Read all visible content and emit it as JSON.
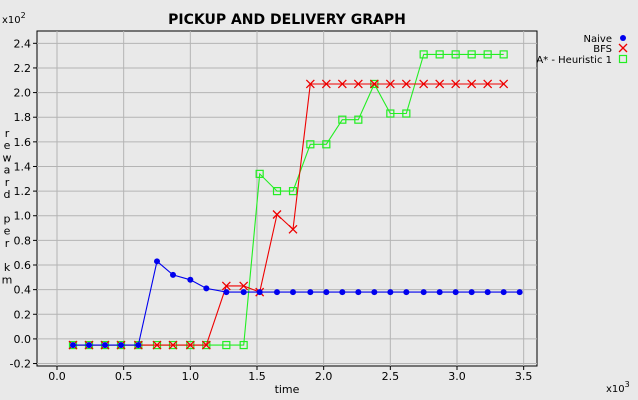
{
  "chart_data": {
    "type": "line",
    "title": "PICKUP AND DELIVERY GRAPH",
    "xlabel": "time",
    "ylabel_chars": [
      "r",
      "e",
      "w",
      "a",
      "r",
      "d",
      "",
      "p",
      "e",
      "r",
      "",
      "k",
      "m"
    ],
    "x_multiplier": {
      "base": "x10",
      "exp": "3"
    },
    "y_multiplier": {
      "base": "x10",
      "exp": "2"
    },
    "xlim": [
      -0.15,
      3.6
    ],
    "ylim": [
      -0.22,
      2.5
    ],
    "xticks": [
      0.0,
      0.5,
      1.0,
      1.5,
      2.0,
      2.5,
      3.0,
      3.5
    ],
    "xtick_labels": [
      "0.0",
      "0.5",
      "1.0",
      "1.5",
      "2.0",
      "2.5",
      "3.0",
      "3.5"
    ],
    "yticks": [
      -0.2,
      0.0,
      0.2,
      0.4,
      0.6,
      0.8,
      1.0,
      1.2,
      1.4,
      1.6,
      1.8,
      2.0,
      2.2,
      2.4
    ],
    "ytick_labels": [
      "-0.2",
      "0.0",
      "0.2",
      "0.4",
      "0.6",
      "0.8",
      "1.0",
      "1.2",
      "1.4",
      "1.6",
      "1.8",
      "2.0",
      "2.2",
      "2.4"
    ],
    "grid": true,
    "legend_position": "top-right",
    "series": [
      {
        "name": "Naive",
        "color": "#0000ee",
        "marker": "circle",
        "x": [
          0.12,
          0.24,
          0.36,
          0.48,
          0.61,
          0.75,
          0.87,
          1.0,
          1.12,
          1.27,
          1.4,
          1.52,
          1.65,
          1.77,
          1.9,
          2.02,
          2.14,
          2.26,
          2.38,
          2.5,
          2.62,
          2.75,
          2.87,
          2.99,
          3.11,
          3.23,
          3.35,
          3.47
        ],
        "y": [
          -0.05,
          -0.05,
          -0.05,
          -0.05,
          -0.05,
          0.63,
          0.52,
          0.48,
          0.41,
          0.38,
          0.38,
          0.38,
          0.38,
          0.38,
          0.38,
          0.38,
          0.38,
          0.38,
          0.38,
          0.38,
          0.38,
          0.38,
          0.38,
          0.38,
          0.38,
          0.38,
          0.38,
          0.38
        ]
      },
      {
        "name": "BFS",
        "color": "#ee0000",
        "marker": "x",
        "x": [
          0.12,
          0.24,
          0.36,
          0.48,
          0.61,
          0.75,
          0.87,
          1.0,
          1.12,
          1.27,
          1.4,
          1.52,
          1.65,
          1.77,
          1.9,
          2.02,
          2.14,
          2.26,
          2.38,
          2.5,
          2.62,
          2.75,
          2.87,
          2.99,
          3.11,
          3.23,
          3.35
        ],
        "y": [
          -0.05,
          -0.05,
          -0.05,
          -0.05,
          -0.05,
          -0.05,
          -0.05,
          -0.05,
          -0.05,
          0.43,
          0.43,
          0.38,
          1.01,
          0.89,
          2.07,
          2.07,
          2.07,
          2.07,
          2.07,
          2.07,
          2.07,
          2.07,
          2.07,
          2.07,
          2.07,
          2.07,
          2.07
        ]
      },
      {
        "name": "A* - Heuristic 1",
        "color": "#22ee22",
        "marker": "square",
        "x": [
          0.12,
          0.24,
          0.36,
          0.48,
          0.61,
          0.75,
          0.87,
          1.0,
          1.12,
          1.27,
          1.4,
          1.52,
          1.65,
          1.77,
          1.9,
          2.02,
          2.14,
          2.26,
          2.38,
          2.5,
          2.62,
          2.75,
          2.87,
          2.99,
          3.11,
          3.23,
          3.35
        ],
        "y": [
          -0.05,
          -0.05,
          -0.05,
          -0.05,
          -0.05,
          -0.05,
          -0.05,
          -0.05,
          -0.05,
          -0.05,
          -0.05,
          1.34,
          1.2,
          1.2,
          1.58,
          1.58,
          1.78,
          1.78,
          2.07,
          1.83,
          1.83,
          2.31,
          2.31,
          2.31,
          2.31,
          2.31,
          2.31
        ]
      }
    ]
  }
}
